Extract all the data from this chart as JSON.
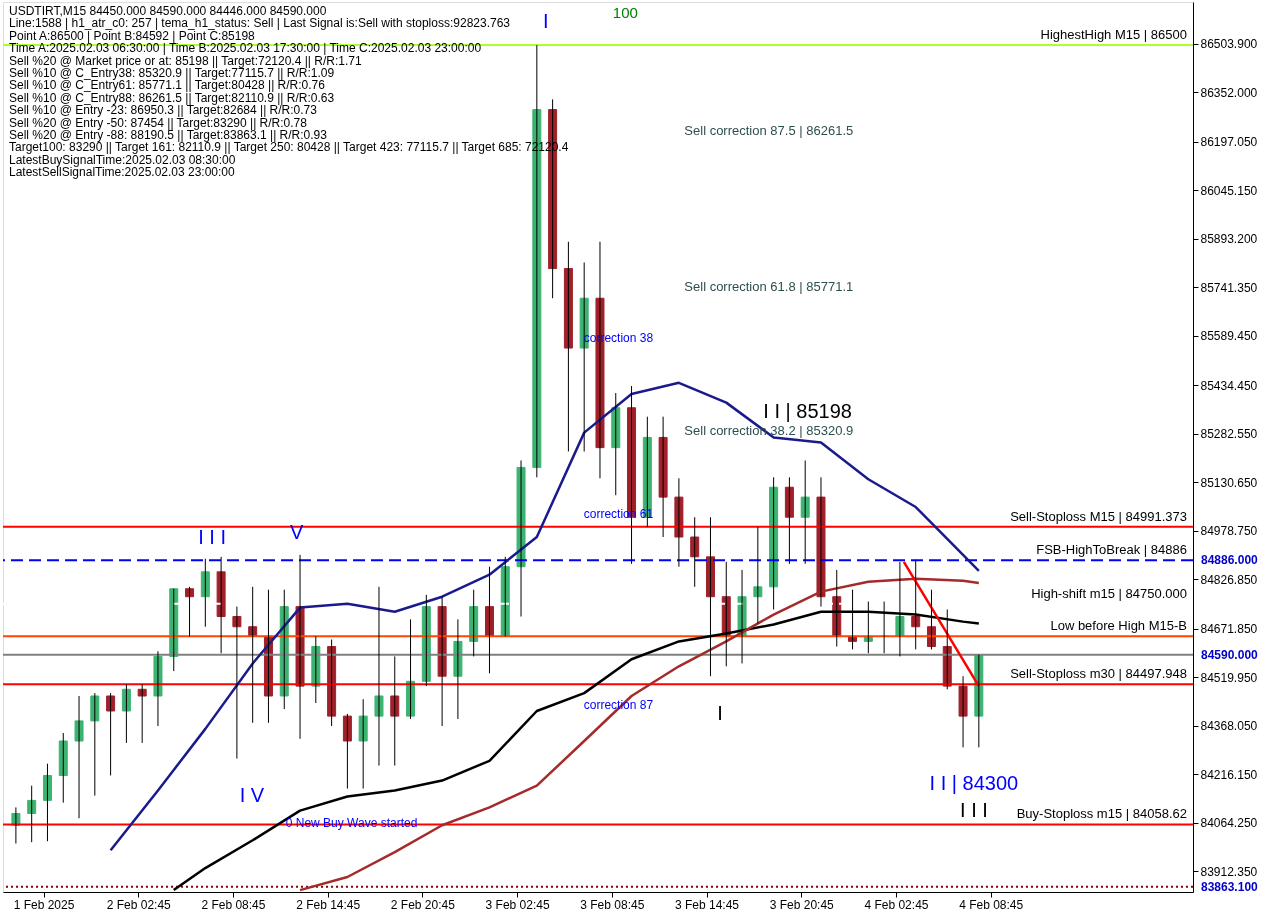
{
  "chart_data": {
    "type": "candlestick",
    "x": [
      "2025-02-01T19:00",
      "2025-02-01T20:00",
      "2025-02-01T21:00",
      "2025-02-01T22:00",
      "2025-02-01T23:00",
      "2025-02-02T00:00",
      "2025-02-02T01:00",
      "2025-02-02T02:00",
      "2025-02-02T03:00",
      "2025-02-02T04:00",
      "2025-02-02T05:00",
      "2025-02-02T06:00",
      "2025-02-02T07:00",
      "2025-02-02T08:00",
      "2025-02-02T09:00",
      "2025-02-02T10:00",
      "2025-02-02T11:00",
      "2025-02-02T12:00",
      "2025-02-02T13:00",
      "2025-02-02T14:00",
      "2025-02-02T15:00",
      "2025-02-02T16:00",
      "2025-02-02T17:00",
      "2025-02-02T18:00",
      "2025-02-02T19:00",
      "2025-02-02T20:00",
      "2025-02-02T21:00",
      "2025-02-02T22:00",
      "2025-02-02T23:00",
      "2025-02-03T00:00",
      "2025-02-03T01:00",
      "2025-02-03T02:00",
      "2025-02-03T03:00",
      "2025-02-03T04:00",
      "2025-02-03T05:00",
      "2025-02-03T06:00",
      "2025-02-03T07:00",
      "2025-02-03T08:00",
      "2025-02-03T09:00",
      "2025-02-03T10:00",
      "2025-02-03T11:00",
      "2025-02-03T12:00",
      "2025-02-03T13:00",
      "2025-02-03T14:00",
      "2025-02-03T15:00",
      "2025-02-03T16:00",
      "2025-02-03T17:00",
      "2025-02-03T18:00",
      "2025-02-03T19:00",
      "2025-02-03T20:00",
      "2025-02-03T21:00",
      "2025-02-03T22:00",
      "2025-02-03T23:00",
      "2025-02-04T00:00",
      "2025-02-04T01:00",
      "2025-02-04T02:00",
      "2025-02-04T03:00",
      "2025-02-04T04:00",
      "2025-02-04T05:00",
      "2025-02-04T06:00",
      "2025-02-04T07:00",
      "2025-02-04T08:00"
    ],
    "ohlc": [
      [
        84056,
        84112,
        83999,
        84093
      ],
      [
        84093,
        84180,
        84003,
        84134
      ],
      [
        84134,
        84249,
        84006,
        84212
      ],
      [
        84212,
        84345,
        84127,
        84320
      ],
      [
        84320,
        84461,
        84078,
        84383
      ],
      [
        84383,
        84470,
        84149,
        84461
      ],
      [
        84461,
        84470,
        84212,
        84414
      ],
      [
        84414,
        84498,
        84314,
        84482
      ],
      [
        84482,
        84498,
        84314,
        84461
      ],
      [
        84461,
        84601,
        84367,
        84585
      ],
      [
        84585,
        84797,
        84539,
        84797
      ],
      [
        84797,
        84803,
        84648,
        84772
      ],
      [
        84772,
        84891,
        84678,
        84850
      ],
      [
        84850,
        84897,
        84595,
        84710
      ],
      [
        84710,
        84741,
        84265,
        84678
      ],
      [
        84678,
        84803,
        84377,
        84648
      ],
      [
        84648,
        84794,
        84377,
        84461
      ],
      [
        84461,
        84794,
        84420,
        84741
      ],
      [
        84741,
        84903,
        84327,
        84492
      ],
      [
        84492,
        84648,
        84439,
        84616
      ],
      [
        84616,
        84638,
        84367,
        84398
      ],
      [
        84398,
        84405,
        84171,
        84320
      ],
      [
        84320,
        84451,
        84171,
        84398
      ],
      [
        84398,
        84803,
        84243,
        84461
      ],
      [
        84461,
        84585,
        84243,
        84398
      ],
      [
        84398,
        84701,
        84389,
        84507
      ],
      [
        84507,
        84778,
        84492,
        84741
      ],
      [
        84741,
        84772,
        84367,
        84523
      ],
      [
        84523,
        84701,
        84389,
        84632
      ],
      [
        84632,
        84794,
        84585,
        84741
      ],
      [
        84741,
        84866,
        84532,
        84648
      ],
      [
        84648,
        84897,
        84648,
        84866
      ],
      [
        84866,
        85199,
        84710,
        85177
      ],
      [
        85177,
        86500,
        85146,
        86298
      ],
      [
        86298,
        86330,
        85707,
        85800
      ],
      [
        85800,
        85884,
        85227,
        85551
      ],
      [
        85551,
        85819,
        85227,
        85707
      ],
      [
        85707,
        85884,
        85143,
        85239
      ],
      [
        85239,
        85410,
        85090,
        85364
      ],
      [
        85364,
        85432,
        84875,
        85021
      ],
      [
        85021,
        85336,
        84990,
        85271
      ],
      [
        85271,
        85336,
        84959,
        85084
      ],
      [
        85084,
        85143,
        84866,
        84959
      ],
      [
        84959,
        85021,
        84803,
        84897
      ],
      [
        84897,
        85021,
        84523,
        84772
      ],
      [
        84772,
        84881,
        84554,
        84648
      ],
      [
        84648,
        84856,
        84563,
        84772
      ],
      [
        84772,
        84990,
        84688,
        84803
      ],
      [
        84803,
        85146,
        84732,
        85115
      ],
      [
        85115,
        85146,
        84875,
        85021
      ],
      [
        85021,
        85199,
        84875,
        85084
      ],
      [
        85084,
        85146,
        84741,
        84772
      ],
      [
        84772,
        84856,
        84616,
        84648
      ],
      [
        84648,
        84794,
        84607,
        84632
      ],
      [
        84632,
        84757,
        84595,
        84648
      ],
      [
        84648,
        84757,
        84595,
        84648
      ],
      [
        84648,
        84881,
        84585,
        84710
      ],
      [
        84710,
        84888,
        84607,
        84678
      ],
      [
        84678,
        84794,
        84607,
        84616
      ],
      [
        84616,
        84732,
        84482,
        84492
      ],
      [
        84492,
        84523,
        84300,
        84398
      ],
      [
        84398,
        84590,
        84300,
        84590
      ]
    ],
    "colors": [
      "#3cb371",
      "#3cb371",
      "#3cb371",
      "#3cb371",
      "#3cb371",
      "#3cb371",
      "#a0202a",
      "#3cb371",
      "#a0202a",
      "#3cb371",
      "#3cb371",
      "#a0202a",
      "#3cb371",
      "#a0202a",
      "#a0202a",
      "#a0202a",
      "#a0202a",
      "#3cb371",
      "#a0202a",
      "#3cb371",
      "#a0202a",
      "#a0202a",
      "#3cb371",
      "#3cb371",
      "#a0202a",
      "#3cb371",
      "#3cb371",
      "#a0202a",
      "#3cb371",
      "#3cb371",
      "#a0202a",
      "#3cb371",
      "#3cb371",
      "#3cb371",
      "#a0202a",
      "#a0202a",
      "#3cb371",
      "#a0202a",
      "#3cb371",
      "#a0202a",
      "#3cb371",
      "#a0202a",
      "#a0202a",
      "#a0202a",
      "#a0202a",
      "#a0202a",
      "#3cb371",
      "#3cb371",
      "#3cb371",
      "#a0202a",
      "#3cb371",
      "#a0202a",
      "#a0202a",
      "#a0202a",
      "#3cb371",
      "#3cb371",
      "#3cb371",
      "#a0202a",
      "#a0202a",
      "#a0202a",
      "#a0202a",
      "#3cb371"
    ],
    "series": [
      {
        "type": "line",
        "color": "#1a1a8c",
        "x": [
          "2025-02-02T01:00",
          "2025-02-02T04:00",
          "2025-02-02T07:00",
          "2025-02-02T10:00",
          "2025-02-02T13:00",
          "2025-02-02T16:00",
          "2025-02-02T19:00",
          "2025-02-02T22:00",
          "2025-02-03T01:00",
          "2025-02-03T04:00",
          "2025-02-03T07:00",
          "2025-02-03T10:00",
          "2025-02-03T13:00",
          "2025-02-03T16:00",
          "2025-02-03T19:00",
          "2025-02-03T22:00",
          "2025-02-04T01:00",
          "2025-02-04T04:00",
          "2025-02-04T07:00",
          "2025-02-04T08:00"
        ],
        "values": [
          83978,
          84165,
          84358,
          84563,
          84738,
          84750,
          84725,
          84772,
          84841,
          84959,
          85286,
          85407,
          85442,
          85380,
          85271,
          85255,
          85140,
          85053,
          84903,
          84853
        ]
      },
      {
        "type": "line",
        "color": "#000000",
        "x": [
          "2025-02-02T05:00",
          "2025-02-02T07:00",
          "2025-02-02T10:00",
          "2025-02-02T13:00",
          "2025-02-02T16:00",
          "2025-02-02T19:00",
          "2025-02-02T22:00",
          "2025-02-03T01:00",
          "2025-02-03T04:00",
          "2025-02-03T07:00",
          "2025-02-03T10:00",
          "2025-02-03T13:00",
          "2025-02-03T16:00",
          "2025-02-03T19:00",
          "2025-02-03T22:00",
          "2025-02-04T01:00",
          "2025-02-04T04:00",
          "2025-02-04T07:00",
          "2025-02-04T08:00"
        ],
        "values": [
          83853,
          83922,
          84009,
          84102,
          84146,
          84165,
          84196,
          84258,
          84414,
          84470,
          84576,
          84632,
          84657,
          84685,
          84725,
          84725,
          84716,
          84694,
          84688
        ]
      },
      {
        "type": "line",
        "color": "#a52a2a",
        "x": [
          "2025-02-02T13:00",
          "2025-02-02T16:00",
          "2025-02-02T19:00",
          "2025-02-02T22:00",
          "2025-02-03T01:00",
          "2025-02-03T04:00",
          "2025-02-03T07:00",
          "2025-02-03T10:00",
          "2025-02-03T13:00",
          "2025-02-03T16:00",
          "2025-02-03T19:00",
          "2025-02-03T22:00",
          "2025-02-04T01:00",
          "2025-02-04T04:00",
          "2025-02-04T07:00",
          "2025-02-04T08:00"
        ],
        "values": [
          83853,
          83894,
          83972,
          84056,
          84112,
          84180,
          84320,
          84461,
          84554,
          84632,
          84716,
          84788,
          84819,
          84828,
          84822,
          84815
        ]
      },
      {
        "type": "line",
        "color": "#ff0000",
        "x": [
          "2025-02-04T03:15",
          "2025-02-04T08:00"
        ],
        "values": [
          84881,
          84492
        ]
      }
    ],
    "xlim": [
      "2025-02-01T18:30",
      "2025-02-04T21:15"
    ],
    "xticks": [
      {
        "value": "2025-02-01T20:45",
        "label": "1 Feb 2025"
      },
      {
        "value": "2025-02-02T02:45",
        "label": "2 Feb 02:45"
      },
      {
        "value": "2025-02-02T08:45",
        "label": "2 Feb 08:45"
      },
      {
        "value": "2025-02-02T14:45",
        "label": "2 Feb 14:45"
      },
      {
        "value": "2025-02-02T20:45",
        "label": "2 Feb 20:45"
      },
      {
        "value": "2025-02-03T02:45",
        "label": "3 Feb 02:45"
      },
      {
        "value": "2025-02-03T08:45",
        "label": "3 Feb 08:45"
      },
      {
        "value": "2025-02-03T14:45",
        "label": "3 Feb 14:45"
      },
      {
        "value": "2025-02-03T20:45",
        "label": "3 Feb 20:45"
      },
      {
        "value": "2025-02-04T02:45",
        "label": "4 Feb 02:45"
      },
      {
        "value": "2025-02-04T08:45",
        "label": "4 Feb 08:45"
      }
    ],
    "ylim": [
      83847,
      86635
    ],
    "yticks": [
      {
        "value": 86503.9,
        "label": "86503.900"
      },
      {
        "value": 86352,
        "label": "86352.000"
      },
      {
        "value": 86197.05,
        "label": "86197.050"
      },
      {
        "value": 86045.15,
        "label": "86045.150"
      },
      {
        "value": 85893.2,
        "label": "85893.200"
      },
      {
        "value": 85741.35,
        "label": "85741.350"
      },
      {
        "value": 85589.45,
        "label": "85589.450"
      },
      {
        "value": 85434.45,
        "label": "85434.450"
      },
      {
        "value": 85282.55,
        "label": "85282.550"
      },
      {
        "value": 85130.65,
        "label": "85130.650"
      },
      {
        "value": 84978.75,
        "label": "84978.750"
      },
      {
        "value": 84826.85,
        "label": "84826.850"
      },
      {
        "value": 84671.85,
        "label": "84671.850"
      },
      {
        "value": 84519.95,
        "label": "84519.950"
      },
      {
        "value": 84368.05,
        "label": "84368.050"
      },
      {
        "value": 84216.15,
        "label": "84216.150"
      },
      {
        "value": 84064.25,
        "label": "84064.250"
      },
      {
        "value": 83912.35,
        "label": "83912.350"
      }
    ],
    "ref_lines": [
      {
        "axis": "y",
        "value": 86500,
        "label": "HighestHigh    M15 | 86500",
        "color": "#adff2f",
        "line_style": "solid"
      },
      {
        "axis": "y",
        "value": 84991.373,
        "label": "Sell-Stoploss M15 | 84991.373",
        "color": "#ff0000",
        "line_style": "solid"
      },
      {
        "axis": "y",
        "value": 84886,
        "label": "FSB-HighToBreak | 84886",
        "color": "#0000ff",
        "line_style": "dashed"
      },
      {
        "axis": "y",
        "value": 84750,
        "label": "High-shift m15 | 84750.000",
        "color": "#ffffff",
        "line_style": "dashed"
      },
      {
        "axis": "y",
        "value": 84648,
        "label": "Low before High    M15-B",
        "color": "#ff4500",
        "line_style": "solid"
      },
      {
        "axis": "y",
        "value": 84590,
        "color": "#808080",
        "line_style": "solid"
      },
      {
        "axis": "y",
        "value": 84497.948,
        "label": "Sell-Stoploss m30 | 84497.948",
        "color": "#ff0000",
        "line_style": "solid"
      },
      {
        "axis": "y",
        "value": 84058.62,
        "label": "Buy-Stoploss m15 | 84058.62",
        "color": "#ff0000",
        "line_style": "solid"
      },
      {
        "axis": "y",
        "value": 83863.1,
        "color": "#8b0000",
        "line_style": "dotted"
      }
    ],
    "annotations": [
      "USDTIRT,M15  84450.000 84590.000 84446.000 84590.000",
      "Line:1588 | h1_atr_c0: 257 | tema_h1_status: Sell | Last Signal is:Sell with stoploss:92823.763",
      "Point A:86500 | Point B:84592 | Point C:85198",
      "Time A:2025.02.03 06:30:00 | Time B:2025.02.03 17:30:00 | Time C:2025.02.03 23:00:00",
      "Sell %20 @ Market price or at: 85198 || Target:72120.4 || R/R:1.71",
      "Sell %10 @ C_Entry38: 85320.9 || Target:77115.7 || R/R:1.09",
      "Sell %10 @ C_Entry61: 85771.1 || Target:80428 || R/R:0.76",
      "Sell %10 @ C_Entry88: 86261.5 || Target:82110.9 || R/R:0.63",
      "Sell %10 @ Entry -23: 86950.3 || Target:82684 || R/R:0.73",
      "Sell %20 @ Entry -50: 87454 || Target:83290 || R/R:0.78",
      "Sell %20 @ Entry -88: 88190.5 || Target:83863.1 || R/R:0.93",
      "Target100: 83290 || Target 161: 82110.9 || Target 250: 80428 || Target 423: 77115.7 || Target 685: 72120.4",
      "LatestBuySignalTime:2025.02.03 08:30:00",
      "LatestSellSignalTime:2025.02.03 23:00:00",
      "100",
      "Sell correction 87.5 | 86261.5",
      "Sell correction 61.8 | 85771.1",
      "Sell correction 38.2 | 85320.9",
      "I I | 85198",
      "I I | 84300",
      "I I I",
      "I I I",
      "I V",
      "V",
      "I",
      "I",
      "correction 38",
      "correction 61",
      "correction 87",
      "0 New Buy Wave started",
      "84886.000",
      "84590.000",
      "83863.100"
    ]
  }
}
